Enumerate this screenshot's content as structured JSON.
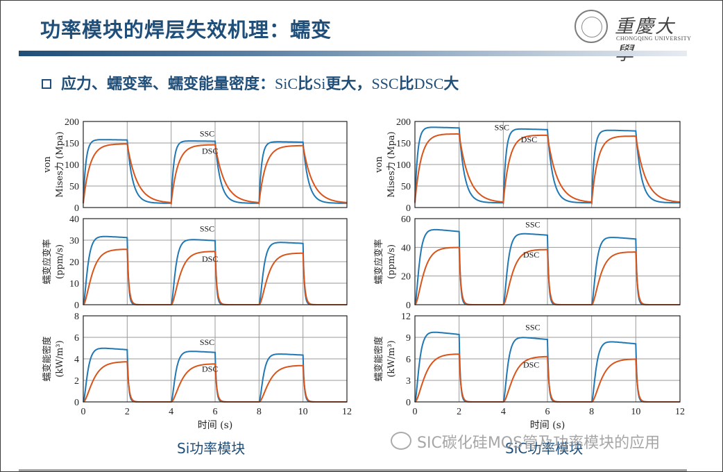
{
  "slide": {
    "title": "功率模块的焊层失效机理：蠕变",
    "subtitle_prefix": "应力、蠕变率、蠕变能量密度：",
    "subtitle_parts": [
      "SiC",
      "比",
      "Si",
      "更大，",
      "SSC",
      "比",
      "DSC",
      "大"
    ],
    "logo_name": "重慶大學",
    "logo_en": "CHONGQING UNIVERSITY",
    "caption_left": "Si功率模块",
    "caption_right": "SiC功率模块",
    "watermark": "SIC碳化硅MOS管及功率模块的应用",
    "colors": {
      "title": "#1f4e79",
      "ssc": "#1f77b4",
      "dsc": "#d95319",
      "grid": "#8c8c8c"
    }
  },
  "chart_data": [
    {
      "type": "line",
      "panel": "Si-stress",
      "column": "Si功率模块",
      "ylabel": "von Mises力 (Mpa)",
      "xlabel": "",
      "xlim": [
        0,
        12
      ],
      "ylim": [
        0,
        200
      ],
      "yticks": [
        0,
        50,
        100,
        150,
        200
      ],
      "xticks": [
        0,
        2,
        4,
        6,
        8,
        10,
        12
      ],
      "show_xticklabels": false,
      "annotations": [
        {
          "text": "SSC",
          "x": 5.3,
          "y": 165
        },
        {
          "text": "DSC",
          "x": 5.4,
          "y": 125
        }
      ],
      "series": [
        {
          "name": "SSC",
          "pulses": [
            {
              "start": 0,
              "end": 2,
              "peak": 158,
              "endval": 157
            },
            {
              "start": 4,
              "end": 6,
              "peak": 155,
              "endval": 154
            },
            {
              "start": 8,
              "end": 10,
              "peak": 153,
              "endval": 152
            }
          ],
          "base": 10,
          "rise_tau": 0.12,
          "fall_tau": 0.25,
          "rise_order": 1
        },
        {
          "name": "DSC",
          "pulses": [
            {
              "start": 0,
              "end": 2,
              "peak": 148,
              "endval": 148
            },
            {
              "start": 4,
              "end": 6,
              "peak": 146,
              "endval": 146
            },
            {
              "start": 8,
              "end": 10,
              "peak": 144,
              "endval": 144
            }
          ],
          "base": 10,
          "rise_tau": 0.3,
          "fall_tau": 0.45,
          "rise_order": 1
        }
      ]
    },
    {
      "type": "line",
      "panel": "SiC-stress",
      "column": "SiC功率模块",
      "ylabel": "von Mises力 (Mpa)",
      "xlabel": "",
      "xlim": [
        0,
        12
      ],
      "ylim": [
        0,
        200
      ],
      "yticks": [
        0,
        50,
        100,
        150,
        200
      ],
      "xticks": [
        0,
        2,
        4,
        6,
        8,
        10,
        12
      ],
      "show_xticklabels": false,
      "annotations": [
        {
          "text": "SSC",
          "x": 3.6,
          "y": 180
        },
        {
          "text": "DSC",
          "x": 4.8,
          "y": 152
        }
      ],
      "series": [
        {
          "name": "SSC",
          "pulses": [
            {
              "start": 0,
              "end": 2,
              "peak": 187,
              "endval": 185
            },
            {
              "start": 4,
              "end": 6,
              "peak": 183,
              "endval": 181
            },
            {
              "start": 8,
              "end": 10,
              "peak": 180,
              "endval": 178
            }
          ],
          "base": 11,
          "rise_tau": 0.12,
          "fall_tau": 0.25,
          "rise_order": 1
        },
        {
          "name": "DSC",
          "pulses": [
            {
              "start": 0,
              "end": 2,
              "peak": 172,
              "endval": 171
            },
            {
              "start": 4,
              "end": 6,
              "peak": 169,
              "endval": 168
            },
            {
              "start": 8,
              "end": 10,
              "peak": 167,
              "endval": 166
            }
          ],
          "base": 11,
          "rise_tau": 0.28,
          "fall_tau": 0.45,
          "rise_order": 1
        }
      ]
    },
    {
      "type": "line",
      "panel": "Si-creep-rate",
      "column": "Si功率模块",
      "ylabel": "蠕变应变率 (ppm/s)",
      "xlabel": "",
      "xlim": [
        0,
        12
      ],
      "ylim": [
        0,
        40
      ],
      "yticks": [
        0,
        10,
        20,
        30,
        40
      ],
      "xticks": [
        0,
        2,
        4,
        6,
        8,
        10,
        12
      ],
      "show_xticklabels": false,
      "annotations": [
        {
          "text": "SSC",
          "x": 5.3,
          "y": 34
        },
        {
          "text": "DSC",
          "x": 5.4,
          "y": 20
        }
      ],
      "series": [
        {
          "name": "SSC",
          "pulses": [
            {
              "start": 0,
              "end": 2,
              "peak": 32,
              "endval": 31.2
            },
            {
              "start": 4,
              "end": 6,
              "peak": 30.5,
              "endval": 29.8
            },
            {
              "start": 8,
              "end": 10,
              "peak": 29.2,
              "endval": 28.5
            }
          ],
          "base": 0,
          "rise_tau": 0.15,
          "fall_tau": 0.06,
          "rise_order": 2
        },
        {
          "name": "DSC",
          "pulses": [
            {
              "start": 0,
              "end": 2,
              "peak": 26,
              "endval": 25.8
            },
            {
              "start": 4,
              "end": 6,
              "peak": 25,
              "endval": 24.8
            },
            {
              "start": 8,
              "end": 10,
              "peak": 24.2,
              "endval": 24
            }
          ],
          "base": 0,
          "rise_tau": 0.3,
          "fall_tau": 0.08,
          "rise_order": 2
        }
      ]
    },
    {
      "type": "line",
      "panel": "SiC-creep-rate",
      "column": "SiC功率模块",
      "ylabel": "蠕变应变率 (ppm/s)",
      "xlabel": "",
      "xlim": [
        0,
        12
      ],
      "ylim": [
        0,
        60
      ],
      "yticks": [
        0,
        20,
        40,
        60
      ],
      "xticks": [
        0,
        2,
        4,
        6,
        8,
        10,
        12
      ],
      "show_xticklabels": false,
      "annotations": [
        {
          "text": "SSC",
          "x": 5.0,
          "y": 54
        },
        {
          "text": "DSC",
          "x": 4.9,
          "y": 33
        }
      ],
      "series": [
        {
          "name": "SSC",
          "pulses": [
            {
              "start": 0,
              "end": 2,
              "peak": 53,
              "endval": 51
            },
            {
              "start": 4,
              "end": 6,
              "peak": 50,
              "endval": 48.5
            },
            {
              "start": 8,
              "end": 10,
              "peak": 47.5,
              "endval": 45.8
            }
          ],
          "base": 0,
          "rise_tau": 0.15,
          "fall_tau": 0.06,
          "rise_order": 2
        },
        {
          "name": "DSC",
          "pulses": [
            {
              "start": 0,
              "end": 2,
              "peak": 40.5,
              "endval": 40
            },
            {
              "start": 4,
              "end": 6,
              "peak": 39,
              "endval": 38.5
            },
            {
              "start": 8,
              "end": 10,
              "peak": 37.3,
              "endval": 36.8
            }
          ],
          "base": 0,
          "rise_tau": 0.3,
          "fall_tau": 0.08,
          "rise_order": 2
        }
      ]
    },
    {
      "type": "line",
      "panel": "Si-energy-density",
      "column": "Si功率模块",
      "ylabel": "蠕变能密度 (kW/m³)",
      "xlabel": "时间 (s)",
      "xlim": [
        0,
        12
      ],
      "ylim": [
        0,
        8
      ],
      "yticks": [
        0,
        2,
        4,
        6,
        8
      ],
      "xticks": [
        0,
        2,
        4,
        6,
        8,
        10,
        12
      ],
      "show_xticklabels": true,
      "annotations": [
        {
          "text": "SSC",
          "x": 5.3,
          "y": 5.3
        },
        {
          "text": "DSC",
          "x": 5.4,
          "y": 2.8
        }
      ],
      "series": [
        {
          "name": "SSC",
          "pulses": [
            {
              "start": 0,
              "end": 2,
              "peak": 5.05,
              "endval": 4.85
            },
            {
              "start": 4,
              "end": 6,
              "peak": 4.75,
              "endval": 4.6
            },
            {
              "start": 8,
              "end": 10,
              "peak": 4.5,
              "endval": 4.35
            }
          ],
          "base": 0,
          "rise_tau": 0.15,
          "fall_tau": 0.06,
          "rise_order": 2
        },
        {
          "name": "DSC",
          "pulses": [
            {
              "start": 0,
              "end": 2,
              "peak": 3.8,
              "endval": 3.75
            },
            {
              "start": 4,
              "end": 6,
              "peak": 3.6,
              "endval": 3.55
            },
            {
              "start": 8,
              "end": 10,
              "peak": 3.45,
              "endval": 3.4
            }
          ],
          "base": 0,
          "rise_tau": 0.35,
          "fall_tau": 0.08,
          "rise_order": 2
        }
      ]
    },
    {
      "type": "line",
      "panel": "SiC-energy-density",
      "column": "SiC功率模块",
      "ylabel": "蠕变能密度 (kW/m³)",
      "xlabel": "时间 (s)",
      "xlim": [
        0,
        12
      ],
      "ylim": [
        0,
        12
      ],
      "yticks": [
        0,
        3,
        6,
        9,
        12
      ],
      "xticks": [
        0,
        2,
        4,
        6,
        8,
        10,
        12
      ],
      "show_xticklabels": true,
      "annotations": [
        {
          "text": "SSC",
          "x": 5.0,
          "y": 10
        },
        {
          "text": "DSC",
          "x": 4.9,
          "y": 4.8
        }
      ],
      "series": [
        {
          "name": "SSC",
          "pulses": [
            {
              "start": 0,
              "end": 2,
              "peak": 9.85,
              "endval": 9.4
            },
            {
              "start": 4,
              "end": 6,
              "peak": 9.1,
              "endval": 8.7
            },
            {
              "start": 8,
              "end": 10,
              "peak": 8.5,
              "endval": 8.1
            }
          ],
          "base": 0,
          "rise_tau": 0.15,
          "fall_tau": 0.06,
          "rise_order": 2
        },
        {
          "name": "DSC",
          "pulses": [
            {
              "start": 0,
              "end": 2,
              "peak": 6.85,
              "endval": 6.7
            },
            {
              "start": 4,
              "end": 6,
              "peak": 6.45,
              "endval": 6.35
            },
            {
              "start": 8,
              "end": 10,
              "peak": 6.1,
              "endval": 6.0
            }
          ],
          "base": 0,
          "rise_tau": 0.35,
          "fall_tau": 0.08,
          "rise_order": 2
        }
      ]
    }
  ]
}
